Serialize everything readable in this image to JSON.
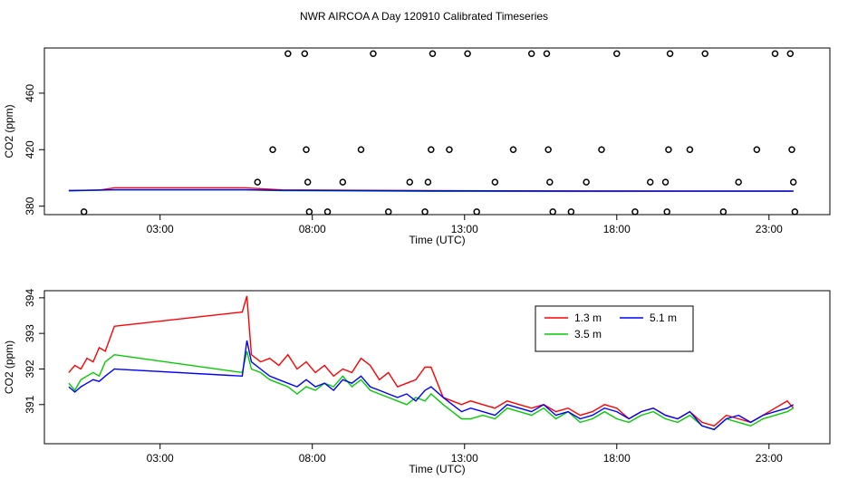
{
  "page": {
    "title": "NWR AIRCOA A  Day 120910  Calibrated Timeseries"
  },
  "chart_data": [
    {
      "type": "scatter",
      "title": "",
      "xlabel": "Time (UTC)",
      "ylabel": "CO2 (ppm)",
      "xlim": [
        -0.8,
        25.0
      ],
      "ylim": [
        374,
        492
      ],
      "x_ticks": [
        3,
        8,
        13,
        18,
        23
      ],
      "x_tick_labels": [
        "03:00",
        "08:00",
        "13:00",
        "18:00",
        "23:00"
      ],
      "y_ticks": [
        380,
        420,
        460
      ],
      "y_tick_labels": [
        "380",
        "420",
        "460"
      ],
      "point_color": "#000000",
      "points": [
        {
          "x": 0.5,
          "y": 376
        },
        {
          "x": 6.2,
          "y": 397
        },
        {
          "x": 6.7,
          "y": 420
        },
        {
          "x": 7.2,
          "y": 488
        },
        {
          "x": 7.75,
          "y": 488
        },
        {
          "x": 7.8,
          "y": 420
        },
        {
          "x": 7.85,
          "y": 397
        },
        {
          "x": 7.9,
          "y": 376
        },
        {
          "x": 8.5,
          "y": 376
        },
        {
          "x": 9.0,
          "y": 397
        },
        {
          "x": 9.6,
          "y": 420
        },
        {
          "x": 10.0,
          "y": 488
        },
        {
          "x": 10.5,
          "y": 376
        },
        {
          "x": 11.2,
          "y": 397
        },
        {
          "x": 11.7,
          "y": 376
        },
        {
          "x": 11.8,
          "y": 397
        },
        {
          "x": 11.9,
          "y": 420
        },
        {
          "x": 11.95,
          "y": 488
        },
        {
          "x": 12.5,
          "y": 420
        },
        {
          "x": 13.1,
          "y": 488
        },
        {
          "x": 13.4,
          "y": 376
        },
        {
          "x": 14.0,
          "y": 397
        },
        {
          "x": 14.6,
          "y": 420
        },
        {
          "x": 15.2,
          "y": 488
        },
        {
          "x": 15.7,
          "y": 488
        },
        {
          "x": 15.75,
          "y": 420
        },
        {
          "x": 15.8,
          "y": 397
        },
        {
          "x": 15.9,
          "y": 376
        },
        {
          "x": 16.5,
          "y": 376
        },
        {
          "x": 17.0,
          "y": 397
        },
        {
          "x": 17.5,
          "y": 420
        },
        {
          "x": 18.0,
          "y": 488
        },
        {
          "x": 18.6,
          "y": 376
        },
        {
          "x": 19.1,
          "y": 397
        },
        {
          "x": 19.6,
          "y": 397
        },
        {
          "x": 19.65,
          "y": 376
        },
        {
          "x": 19.7,
          "y": 420
        },
        {
          "x": 19.75,
          "y": 488
        },
        {
          "x": 20.4,
          "y": 420
        },
        {
          "x": 20.9,
          "y": 488
        },
        {
          "x": 21.5,
          "y": 376
        },
        {
          "x": 22.0,
          "y": 397
        },
        {
          "x": 22.6,
          "y": 420
        },
        {
          "x": 23.2,
          "y": 488
        },
        {
          "x": 23.7,
          "y": 488
        },
        {
          "x": 23.75,
          "y": 420
        },
        {
          "x": 23.8,
          "y": 397
        },
        {
          "x": 23.85,
          "y": 376
        }
      ],
      "series": [
        {
          "color": "#ff0000",
          "x": [
            0.0,
            1.0,
            1.5,
            5.8,
            7.0,
            12.0,
            17.0,
            23.8
          ],
          "values": [
            391,
            391.4,
            393,
            393,
            391.5,
            391,
            390.8,
            390.7
          ]
        },
        {
          "color": "#00cc00",
          "x": [
            0.0,
            1.5,
            5.8,
            7.0,
            12.0,
            17.0,
            23.8
          ],
          "values": [
            390.8,
            391.5,
            391.5,
            391,
            390.5,
            390.4,
            390.5
          ]
        },
        {
          "color": "#0000ff",
          "x": [
            0.0,
            1.5,
            5.8,
            7.0,
            12.0,
            17.0,
            23.8
          ],
          "values": [
            391,
            391.6,
            391.6,
            391.2,
            390.8,
            390.6,
            390.6
          ]
        }
      ]
    },
    {
      "type": "line",
      "title": "",
      "xlabel": "Time (UTC)",
      "ylabel": "CO2 (ppm)",
      "xlim": [
        -0.8,
        25.0
      ],
      "ylim": [
        389.9,
        394.2
      ],
      "x_ticks": [
        3,
        8,
        13,
        18,
        23
      ],
      "x_tick_labels": [
        "03:00",
        "08:00",
        "13:00",
        "18:00",
        "23:00"
      ],
      "y_ticks": [
        391,
        392,
        393,
        394
      ],
      "y_tick_labels": [
        "391",
        "392",
        "393",
        "394"
      ],
      "legend": {
        "position": "top-right",
        "entries": [
          {
            "label": "1.3 m",
            "color": "#ff0000"
          },
          {
            "label": "3.5 m",
            "color": "#00cc00"
          },
          {
            "label": "5.1 m",
            "color": "#0000ff"
          }
        ]
      },
      "series": [
        {
          "name": "1.3 m",
          "color": "#ff0000",
          "x": [
            0.0,
            0.2,
            0.4,
            0.6,
            0.8,
            1.0,
            1.2,
            1.5,
            5.7,
            5.85,
            6.0,
            6.3,
            6.6,
            6.9,
            7.2,
            7.5,
            7.8,
            8.1,
            8.4,
            8.7,
            9.0,
            9.3,
            9.6,
            9.9,
            10.2,
            10.5,
            10.8,
            11.1,
            11.4,
            11.7,
            11.9,
            12.3,
            12.6,
            12.9,
            13.2,
            13.6,
            14.0,
            14.4,
            14.8,
            15.2,
            15.6,
            16.0,
            16.4,
            16.8,
            17.2,
            17.6,
            18.0,
            18.4,
            18.8,
            19.2,
            19.6,
            20.0,
            20.4,
            20.8,
            21.2,
            21.6,
            22.0,
            22.4,
            22.8,
            23.2,
            23.6,
            23.8
          ],
          "values": [
            391.9,
            392.1,
            392.0,
            392.3,
            392.2,
            392.6,
            392.5,
            393.2,
            393.6,
            394.05,
            392.4,
            392.2,
            392.3,
            392.1,
            392.4,
            392.0,
            392.2,
            391.9,
            392.1,
            391.8,
            392.0,
            391.9,
            392.3,
            392.1,
            391.7,
            391.9,
            391.5,
            391.6,
            391.7,
            392.05,
            392.05,
            391.2,
            391.1,
            391.0,
            391.1,
            391.0,
            390.9,
            391.1,
            391.0,
            390.9,
            391.0,
            390.8,
            390.9,
            390.7,
            390.8,
            391.0,
            390.9,
            390.6,
            390.8,
            390.9,
            390.7,
            390.6,
            390.8,
            390.5,
            390.4,
            390.7,
            390.6,
            390.5,
            390.7,
            390.9,
            391.1,
            390.9
          ]
        },
        {
          "name": "3.5 m",
          "color": "#00cc00",
          "x": [
            0.0,
            0.2,
            0.4,
            0.6,
            0.8,
            1.0,
            1.2,
            1.5,
            5.7,
            5.85,
            6.0,
            6.3,
            6.6,
            6.9,
            7.2,
            7.5,
            7.8,
            8.1,
            8.4,
            8.7,
            9.0,
            9.3,
            9.6,
            9.9,
            10.2,
            10.5,
            10.8,
            11.1,
            11.4,
            11.7,
            11.9,
            12.3,
            12.6,
            12.9,
            13.2,
            13.6,
            14.0,
            14.4,
            14.8,
            15.2,
            15.6,
            16.0,
            16.4,
            16.8,
            17.2,
            17.6,
            18.0,
            18.4,
            18.8,
            19.2,
            19.6,
            20.0,
            20.4,
            20.8,
            21.2,
            21.6,
            22.0,
            22.4,
            22.8,
            23.2,
            23.6,
            23.8
          ],
          "values": [
            391.6,
            391.4,
            391.7,
            391.8,
            391.9,
            391.8,
            392.2,
            392.4,
            391.9,
            392.5,
            392.0,
            391.9,
            391.7,
            391.6,
            391.5,
            391.3,
            391.5,
            391.4,
            391.6,
            391.5,
            391.8,
            391.5,
            391.7,
            391.4,
            391.3,
            391.2,
            391.1,
            391.0,
            391.2,
            391.1,
            391.3,
            391.0,
            390.8,
            390.6,
            390.6,
            390.7,
            390.6,
            390.9,
            390.8,
            390.7,
            390.9,
            390.6,
            390.8,
            390.5,
            390.6,
            390.8,
            390.6,
            390.5,
            390.7,
            390.8,
            390.6,
            390.5,
            390.7,
            390.4,
            390.3,
            390.6,
            390.5,
            390.4,
            390.6,
            390.7,
            390.8,
            390.9
          ]
        },
        {
          "name": "5.1 m",
          "color": "#0000ff",
          "x": [
            0.0,
            0.2,
            0.4,
            0.6,
            0.8,
            1.0,
            1.2,
            1.5,
            5.7,
            5.85,
            6.0,
            6.3,
            6.6,
            6.9,
            7.2,
            7.5,
            7.8,
            8.1,
            8.4,
            8.7,
            9.0,
            9.3,
            9.6,
            9.9,
            10.2,
            10.5,
            10.8,
            11.1,
            11.4,
            11.7,
            11.9,
            12.3,
            12.6,
            12.9,
            13.2,
            13.6,
            14.0,
            14.4,
            14.8,
            15.2,
            15.6,
            16.0,
            16.4,
            16.8,
            17.2,
            17.6,
            18.0,
            18.4,
            18.8,
            19.2,
            19.6,
            20.0,
            20.4,
            20.8,
            21.2,
            21.6,
            22.0,
            22.4,
            22.8,
            23.2,
            23.6,
            23.8
          ],
          "values": [
            391.5,
            391.35,
            391.5,
            391.6,
            391.7,
            391.65,
            391.8,
            392.0,
            391.8,
            392.8,
            392.2,
            392.0,
            391.8,
            391.7,
            391.6,
            391.5,
            391.7,
            391.5,
            391.6,
            391.4,
            391.7,
            391.6,
            391.8,
            391.5,
            391.4,
            391.3,
            391.2,
            391.3,
            391.1,
            391.4,
            391.5,
            391.2,
            391.0,
            390.8,
            390.9,
            390.8,
            390.7,
            391.0,
            390.9,
            390.8,
            391.0,
            390.7,
            390.8,
            390.6,
            390.7,
            390.9,
            390.8,
            390.6,
            390.8,
            390.9,
            390.7,
            390.6,
            390.8,
            390.4,
            390.3,
            390.6,
            390.7,
            390.5,
            390.7,
            390.8,
            390.9,
            391.0
          ]
        }
      ]
    }
  ]
}
